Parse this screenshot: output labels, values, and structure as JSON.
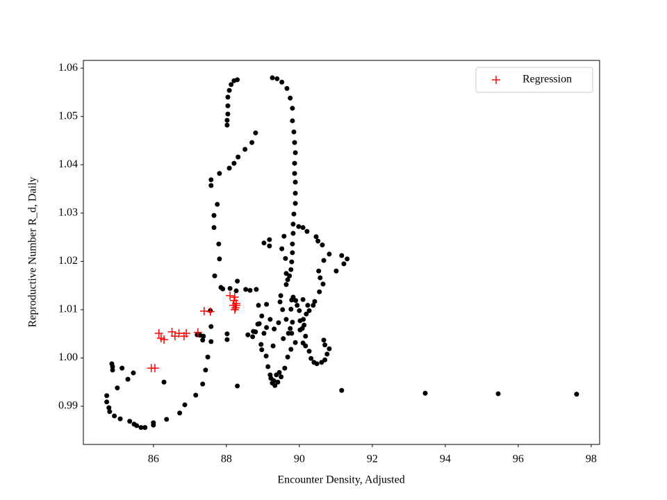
{
  "chart_data": {
    "type": "scatter",
    "xlabel": "Encounter Density, Adjusted",
    "ylabel": "Reproductive Number R_d, Daily",
    "xlim": [
      84.08,
      98.23
    ],
    "ylim": [
      0.9821,
      1.0616
    ],
    "xticks": [
      86,
      88,
      90,
      92,
      94,
      96,
      98
    ],
    "yticks": [
      0.99,
      {
        "value": 1,
        "label": "1.00"
      },
      1.01,
      1.02,
      1.03,
      1.04,
      1.05,
      1.06
    ],
    "grid": false,
    "legend": "upper right",
    "series": [
      {
        "color": "#000000",
        "marker": "o",
        "x": [
          84.72,
          84.72,
          84.78,
          84.8,
          84.93,
          85.09,
          85.35,
          85.47,
          85.54,
          85.66,
          85.77,
          86.0,
          86.0,
          86.36,
          86.72,
          86.86,
          87.16,
          87.35,
          87.43,
          87.49,
          87.58,
          87.58,
          87.56,
          87.68,
          87.85,
          87.9,
          88.1,
          88.27,
          88.53,
          88.65,
          88.82,
          88.88,
          88.9,
          88.74,
          88.59,
          87.58,
          87.58,
          87.66,
          87.66,
          87.75,
          87.79,
          87.81,
          87.81,
          88.08,
          88.21,
          88.32,
          88.51,
          88.7,
          88.8,
          88.02,
          88.02,
          88.04,
          88.04,
          88.04,
          88.08,
          88.13,
          88.21,
          88.3,
          89.26,
          89.39,
          89.52,
          89.66,
          89.75,
          89.81,
          89.81,
          89.85,
          89.87,
          89.89,
          89.87,
          89.87,
          89.89,
          89.89,
          89.89,
          89.85,
          89.83,
          89.83,
          89.81,
          89.81,
          89.79,
          89.77,
          89.73,
          89.68,
          89.64,
          89.98,
          90.1,
          90.21,
          90.46,
          90.51,
          90.63,
          90.82,
          90.67,
          90.53,
          90.57,
          90.65,
          90.55,
          90.42,
          90.38,
          90.27,
          91.16,
          91.31,
          91.01,
          91.22,
          89.03,
          89.18,
          89.18,
          89.58,
          89.52,
          89.62,
          89.64,
          89.49,
          89.47,
          89.54,
          89.64,
          89.75,
          89.79,
          89.83,
          89.9,
          89.94,
          90.0,
          90.02,
          90.08,
          90.13,
          90.17,
          90.1,
          90.17,
          90.27,
          90.32,
          90.4,
          90.48,
          90.61,
          90.7,
          90.76,
          90.82,
          90.67,
          90.7,
          89.2,
          89.1,
          89.03,
          88.95,
          88.97,
          89.09,
          89.14,
          89.2,
          89.26,
          89.33,
          89.41,
          89.5,
          89.6,
          89.68,
          89.77,
          89.89,
          90.02,
          90.11,
          90.19,
          90.23,
          90.1,
          89.79,
          89.77,
          89.81,
          89.7,
          89.56,
          89.31,
          89.43,
          89.28,
          89.1,
          88.97,
          88.86,
          88.8,
          88.72,
          88.3,
          88.02,
          88.02,
          88.3,
          91.16,
          93.45,
          95.45,
          97.6,
          86.29,
          84.86,
          84.88,
          84.88,
          85.01,
          85.14,
          85.3,
          85.45,
          87.2,
          87.28,
          87.37,
          87.35,
          89.22,
          89.3,
          89.37,
          89.45
        ],
        "y": [
          0.9922,
          0.9909,
          0.9897,
          0.9889,
          0.988,
          0.9874,
          0.9869,
          0.9863,
          0.986,
          0.9856,
          0.9856,
          0.9861,
          0.9866,
          0.9873,
          0.9886,
          0.9903,
          0.9923,
          0.9946,
          0.9975,
          1.0002,
          1.0034,
          1.0065,
          1.0098,
          1.017,
          1.0146,
          1.0143,
          1.0144,
          1.0139,
          1.0142,
          1.014,
          1.0142,
          1.0109,
          1.0071,
          1.0055,
          1.0048,
          1.0369,
          1.0357,
          1.0295,
          1.027,
          1.0318,
          1.0236,
          1.0205,
          1.0382,
          1.0393,
          1.0403,
          1.0416,
          1.0432,
          1.0446,
          1.0466,
          1.0482,
          1.0492,
          1.0505,
          1.0522,
          1.054,
          1.0554,
          1.0566,
          1.0574,
          1.0576,
          1.058,
          1.0578,
          1.0571,
          1.0558,
          1.0538,
          1.0517,
          1.0491,
          1.0468,
          1.0446,
          1.0425,
          1.0403,
          1.0382,
          1.0364,
          1.0341,
          1.032,
          1.0298,
          1.0277,
          1.0258,
          1.0236,
          1.0218,
          1.0199,
          1.0183,
          1.017,
          1.0162,
          1.0152,
          1.0272,
          1.027,
          1.0262,
          1.0251,
          1.0242,
          1.0234,
          1.0215,
          1.0202,
          1.018,
          1.0166,
          1.0153,
          1.0137,
          1.0117,
          1.0109,
          1.0098,
          1.0212,
          1.0205,
          1.018,
          1.0195,
          1.0238,
          1.0245,
          1.0232,
          1.0252,
          1.0226,
          1.0206,
          1.0175,
          1.0129,
          1.0116,
          1.01,
          1.008,
          1.0061,
          1.0051,
          1.0126,
          1.0119,
          1.0109,
          1.0098,
          1.0077,
          1.0061,
          1.0068,
          1.0045,
          1.0031,
          1.0025,
          1.0014,
          0.9999,
          0.9991,
          0.9988,
          0.9991,
          0.9996,
          1.0008,
          1.0019,
          1.0037,
          1.0027,
          1.008,
          1.0063,
          1.0051,
          1.0028,
          1.0017,
          1.0004,
          0.9982,
          0.9965,
          0.9948,
          0.9943,
          0.995,
          0.9961,
          0.9979,
          1.0002,
          1.0018,
          1.0032,
          1.0058,
          1.008,
          1.0091,
          1.0109,
          1.0121,
          1.012,
          1.0101,
          1.0074,
          1.0051,
          1.004,
          1.006,
          1.0073,
          1.0025,
          1.0111,
          1.0087,
          1.007,
          1.0054,
          1.0044,
          1.0159,
          1.005,
          1.0038,
          0.9942,
          0.9933,
          0.9927,
          0.9926,
          0.9925,
          0.995,
          0.9988,
          0.9982,
          0.9975,
          0.9938,
          0.9979,
          0.9956,
          0.9969,
          1.0048,
          1.0047,
          1.0045,
          1.0037,
          0.9958,
          0.9953,
          0.9965,
          0.997
        ]
      },
      {
        "name": "Regression",
        "color": "#ff0000",
        "marker": "+",
        "x": [
          85.94,
          86.04,
          86.15,
          86.21,
          86.29,
          86.51,
          86.59,
          86.7,
          86.84,
          86.9,
          87.22,
          87.39,
          87.56,
          88.1,
          88.23,
          88.21,
          88.19,
          88.23,
          88.25,
          88.27,
          88.27
        ],
        "y": [
          0.9979,
          0.9979,
          1.0051,
          1.0041,
          1.0038,
          1.0054,
          1.0045,
          1.0051,
          1.0045,
          1.0051,
          1.0053,
          1.0097,
          1.0096,
          1.0129,
          1.0126,
          1.0119,
          1.0109,
          1.01,
          1.0104,
          1.0109,
          1.0113
        ]
      }
    ]
  }
}
